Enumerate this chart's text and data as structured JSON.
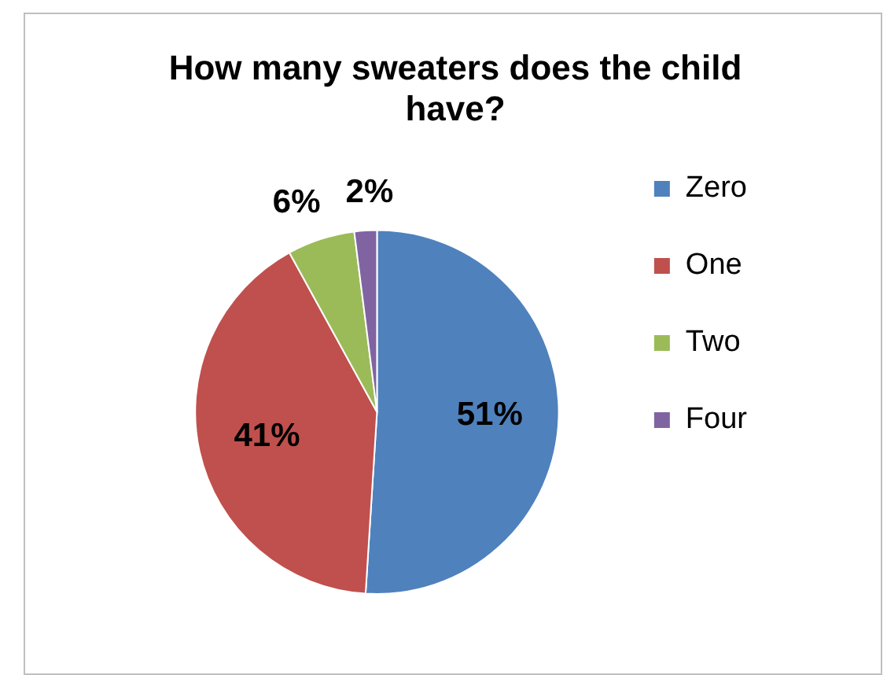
{
  "chart_data": {
    "type": "pie",
    "title": "How many sweaters does the child have?",
    "categories": [
      "Zero",
      "One",
      "Two",
      "Four"
    ],
    "values": [
      51,
      41,
      6,
      2
    ],
    "colors": [
      "#4f81bd",
      "#c0504d",
      "#9bbb59",
      "#8064a2"
    ],
    "value_labels": [
      "51%",
      "41%",
      "6%",
      "2%"
    ],
    "legend": "right"
  }
}
